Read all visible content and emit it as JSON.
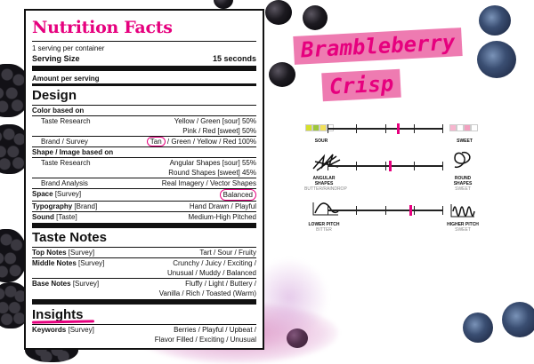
{
  "label": {
    "title": "Nutrition Facts",
    "servings": "1 serving per container",
    "serving_size_label": "Serving Size",
    "serving_size_value": "15 seconds",
    "amount_per_serving": "Amount per serving",
    "design": {
      "heading": "Design",
      "color_heading": "Color based on",
      "color_rows": [
        {
          "label": "Taste Research",
          "value": "Yellow / Green [sour] 50%"
        },
        {
          "label": "",
          "value": "Pink / Red [sweet] 50%"
        }
      ],
      "brand_survey_label": "Brand / Survey",
      "brand_survey_circled": "Tan",
      "brand_survey_rest": " / Green / Yellow / Red 100%",
      "shape_heading": "Shape / Image based on",
      "shape_rows": [
        {
          "label": "Taste Research",
          "value": "Angular Shapes [sour] 55%"
        },
        {
          "label": "",
          "value": "Round Shapes [sweet] 45%"
        },
        {
          "label": "Brand Analysis",
          "value": "Real Imagery / Vector Shapes"
        }
      ],
      "space_label": "Space",
      "space_source": "[Survey]",
      "space_value": "Balanced",
      "typography_label": "Typography",
      "typography_source": "[Brand]",
      "typography_value": "Hand Drawn / Playful",
      "sound_label": "Sound",
      "sound_source": "[Taste]",
      "sound_value": "Medium-High Pitched"
    },
    "taste": {
      "heading": "Taste Notes",
      "top_label": "Top Notes",
      "top_source": "[Survey]",
      "top_value": "Tart / Sour / Fruity",
      "middle_label": "Middle Notes",
      "middle_source": "[Survey]",
      "middle_value1": "Crunchy / Juicy / Exciting /",
      "middle_value2": "Unusual / Muddy / Balanced",
      "base_label": "Base Notes",
      "base_source": "[Survey]",
      "base_value1": "Fluffy / Light / Buttery /",
      "base_value2": "Vanilla / Rich / Toasted (Warm)"
    },
    "insights": {
      "heading": "Insights",
      "keywords_label": "Keywords",
      "keywords_source": "[Survey]",
      "keywords_value1": "Berries / Playful / Upbeat /",
      "keywords_value2": "Flavor Filled / Exciting / Unusual"
    }
  },
  "brand": {
    "line1": "Brambleberry",
    "line2": "Crisp"
  },
  "sliders": [
    {
      "left": "SOUR",
      "left_sub": "",
      "right": "SWEET",
      "right_sub": "",
      "marker": 0.62
    },
    {
      "left": "ANGULAR SHAPES",
      "left_sub": "BUTTER/RAINDROP",
      "right": "ROUND SHAPES",
      "right_sub": "SWEET",
      "marker": 0.55
    },
    {
      "left": "LOWER PITCH",
      "left_sub": "BITTER",
      "right": "HIGHER PITCH",
      "right_sub": "SWEET",
      "marker": 0.72
    }
  ],
  "colors": {
    "accent": "#e6007e",
    "banner": "#ee7bb1",
    "sour_swatches": [
      "#d6e02a",
      "#9dc63b",
      "#f2e15a",
      "#ffffff"
    ],
    "sweet_swatches": [
      "#f7b6cf",
      "#ffffff",
      "#f2a0bf",
      "#ffffff"
    ]
  }
}
